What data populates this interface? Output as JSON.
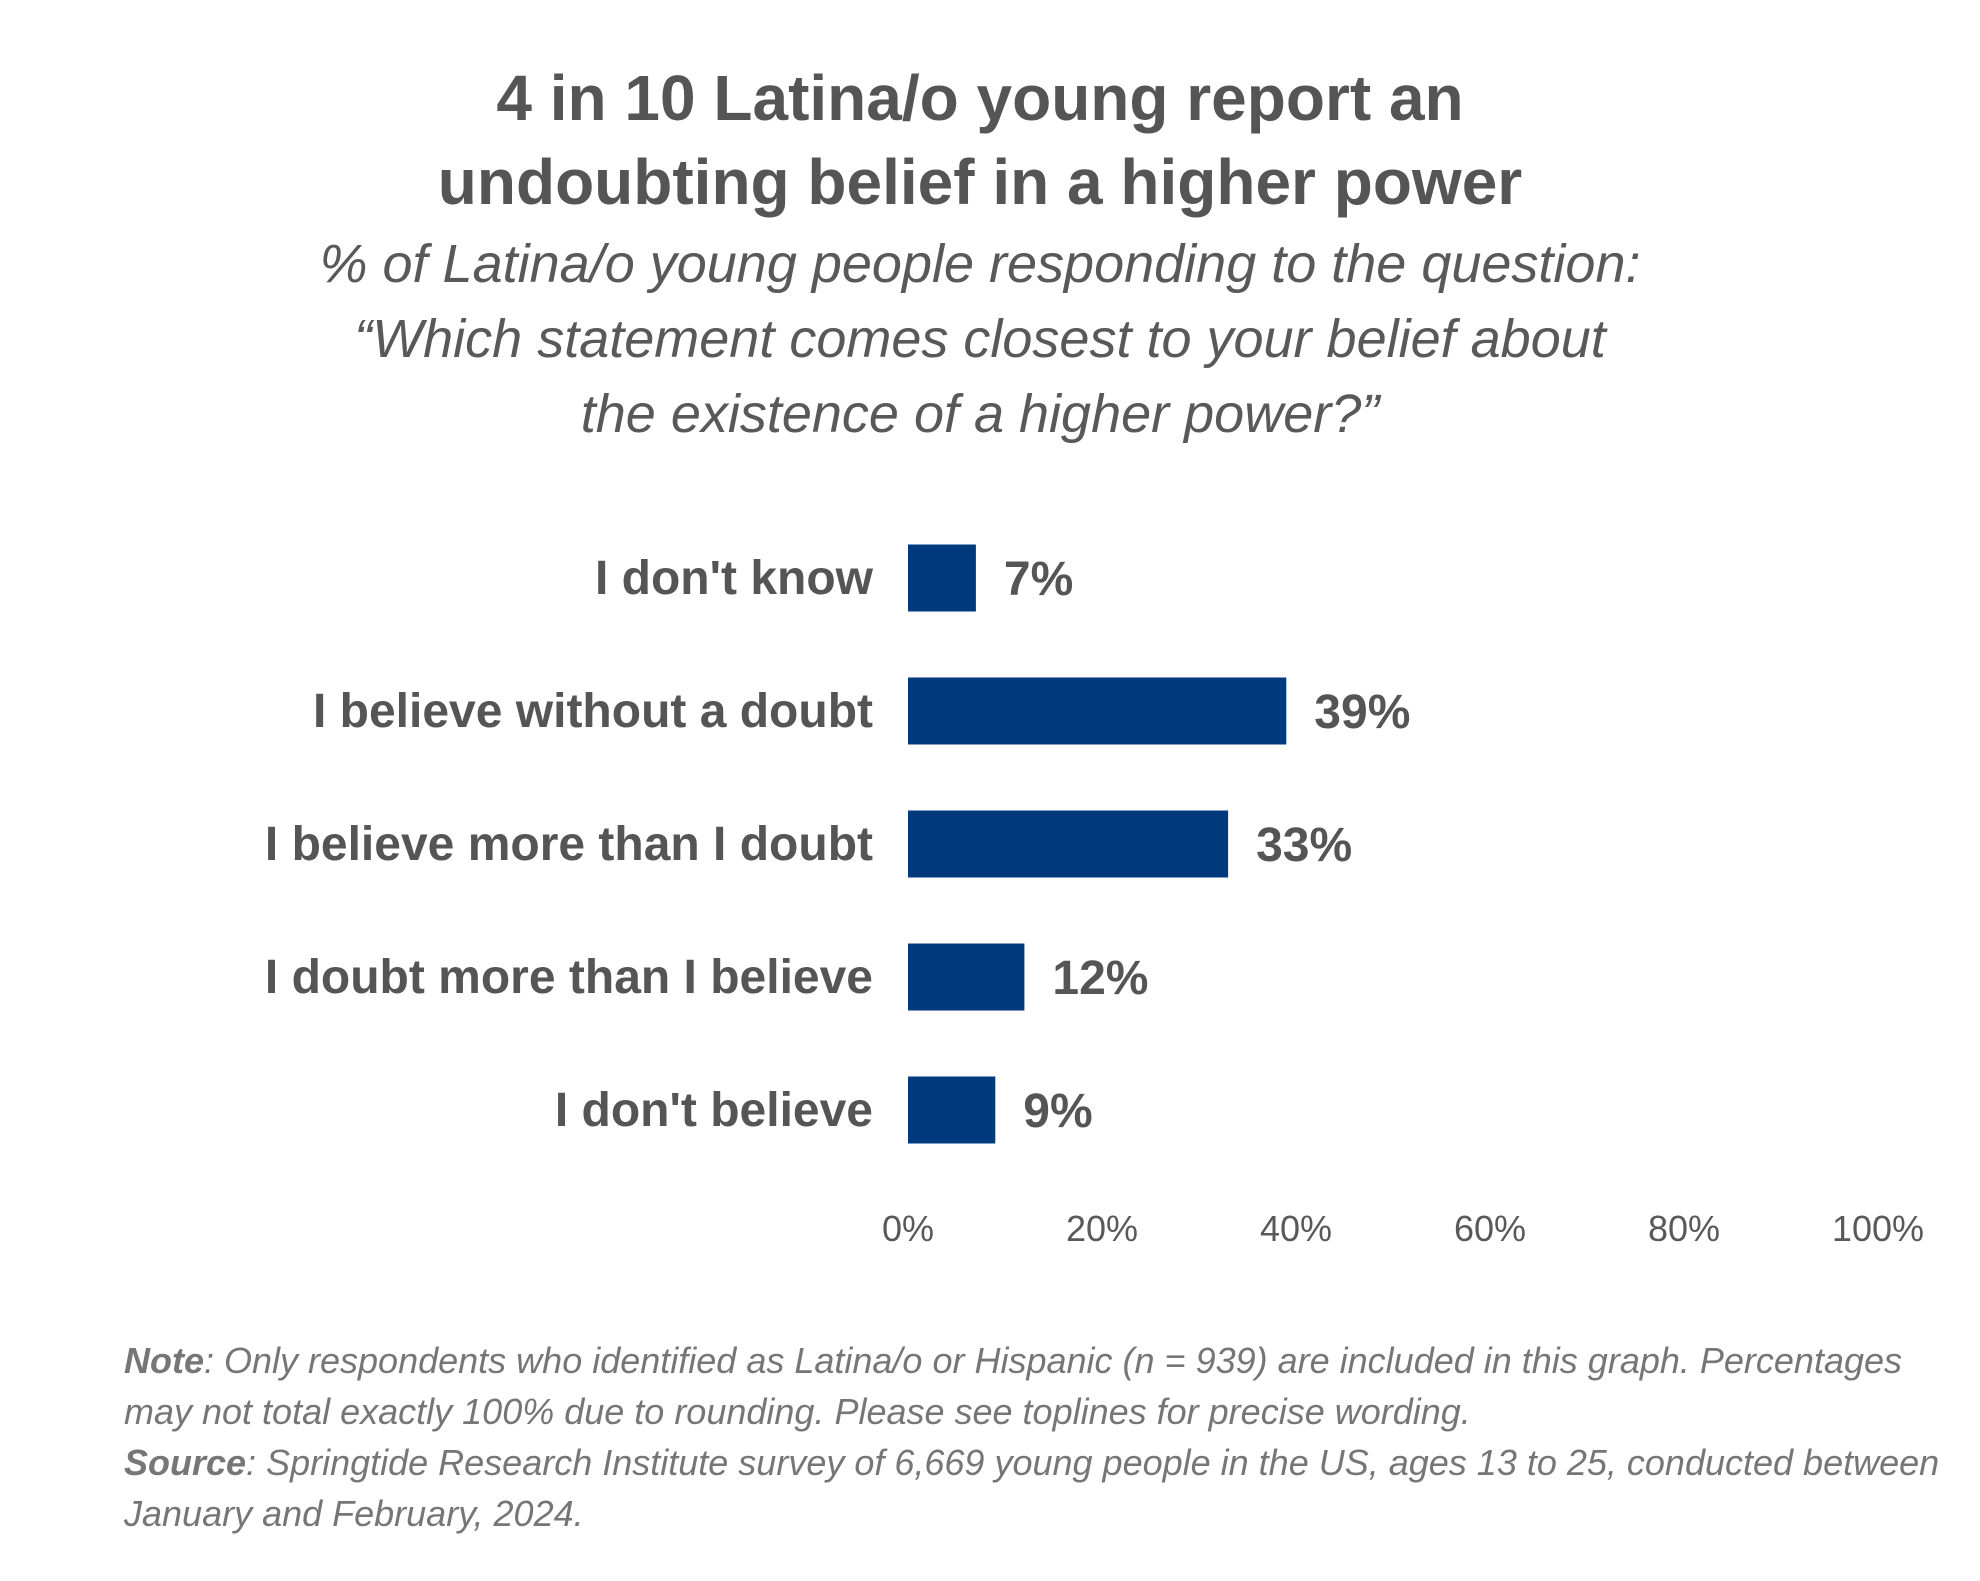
{
  "title_lines": [
    "4 in 10 Latina/o young report an",
    "undoubting belief in a higher power"
  ],
  "subtitle_lines": [
    "% of Latina/o young people responding to the question:",
    "“Which statement comes closest to your belief about",
    "the existence of a higher power?”"
  ],
  "chart_data": {
    "type": "bar",
    "orientation": "horizontal",
    "categories": [
      "I don't know",
      "I believe without a doubt",
      "I believe more than I doubt",
      "I doubt more than I believe",
      "I don't believe"
    ],
    "values": [
      7,
      39,
      33,
      12,
      9
    ],
    "value_labels": [
      "7%",
      "39%",
      "33%",
      "12%",
      "9%"
    ],
    "xlim": [
      0,
      100
    ],
    "x_ticks": [
      0,
      20,
      40,
      60,
      80,
      100
    ],
    "x_tick_labels": [
      "0%",
      "20%",
      "40%",
      "60%",
      "80%",
      "100%"
    ],
    "bar_color": "#003A7D",
    "grid": false,
    "legend": "none"
  },
  "footer": {
    "note_label": "Note",
    "note_text": ": Only respondents who identified as Latina/o or Hispanic (n = 939) are included in this graph. Percentages may not total exactly 100% due to rounding. Please see toplines for precise wording.",
    "source_label": "Source",
    "source_text": ": Springtide Research Institute survey of 6,669 young people in the US, ages 13 to 25, conducted between January and February, 2024."
  }
}
